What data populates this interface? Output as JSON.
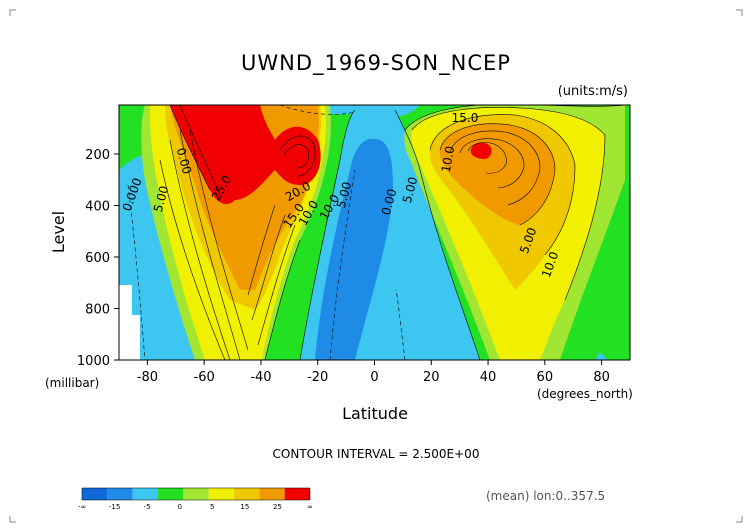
{
  "chart_data": {
    "type": "contour",
    "title": "UWND_1969-SON_NCEP",
    "units": "(units:m/s)",
    "xlabel": "Latitude",
    "ylabel": "Level",
    "x_units": "(degrees_north)",
    "y_units": "(millibar)",
    "x_ticks": [
      "-80",
      "-60",
      "-40",
      "-20",
      "0",
      "20",
      "40",
      "60",
      "80"
    ],
    "y_ticks": [
      "200",
      "400",
      "600",
      "800",
      "1000"
    ],
    "xlim": [
      -90,
      90
    ],
    "ylim": [
      1000,
      10
    ],
    "y_reversed": true,
    "contour_interval_text": "CONTOUR INTERVAL = 2.500E+00",
    "contour_labels": [
      "25.0",
      "20.0",
      "15.0",
      "10.0",
      "10.0",
      "5.00",
      "0.00",
      "0.000",
      "5.00",
      "0.00",
      "5.00",
      "15.0",
      "10.0",
      "5.00",
      "10.0"
    ],
    "colorbar": {
      "labels": [
        "-∞",
        "-15",
        "-5",
        "0",
        "5",
        "15",
        "25",
        "∞"
      ],
      "colors": [
        "#0f69d9",
        "#1e8ce6",
        "#3cc6f0",
        "#22e022",
        "#a0e632",
        "#f0f000",
        "#f0c800",
        "#f09a00",
        "#f00000"
      ]
    },
    "footer": "(mean) lon:0..357.5",
    "fill_colors": {
      "neg_strong": "#1e8ce6",
      "neg": "#3cc6f0",
      "zero": "#22e022",
      "pos_low": "#a0e632",
      "pos_mid": "#f0f000",
      "pos_high": "#f0c800",
      "pos_higher": "#f09a00",
      "pos_max": "#f00000"
    }
  }
}
